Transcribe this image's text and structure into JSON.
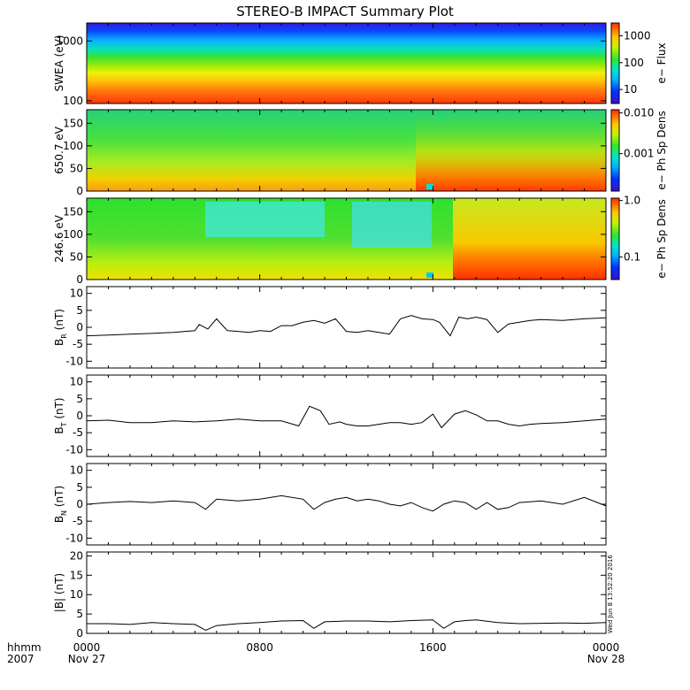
{
  "title": "STEREO-B IMPACT Summary Plot",
  "timestamp": "Wed Jun 8 13:52:20 2016",
  "x_axis": {
    "ticks": [
      "0000",
      "0800",
      "1600",
      "0000"
    ],
    "tick_hours": [
      0,
      8,
      16,
      24
    ],
    "dates": [
      "Nov 27",
      "Nov 28"
    ],
    "corner_label_1": "hhmm",
    "corner_label_2": "2007"
  },
  "chart_data": [
    {
      "type": "heatmap",
      "ylabel": "SWEA (eV)",
      "yscale": "log",
      "ylim": [
        90,
        2000
      ],
      "yticks": [
        "1000",
        "100"
      ],
      "yticks_values": [
        1000,
        100
      ],
      "colorbar": {
        "label": "e− Flux",
        "scale": "log",
        "ticks": [
          "1000",
          "100",
          "10"
        ],
        "tick_values": [
          1000,
          100,
          10
        ],
        "range": [
          3,
          3000
        ]
      },
      "description_values": {
        "energy_eV": [
          100,
          200,
          500,
          1000,
          2000
        ],
        "flux_e": [
          2500,
          700,
          100,
          10,
          3
        ]
      }
    },
    {
      "type": "heatmap",
      "ylabel": "650.7 eV",
      "ylim": [
        0,
        180
      ],
      "yticks": [
        "150",
        "100",
        "50",
        "0"
      ],
      "yticks_values": [
        150,
        100,
        50,
        0
      ],
      "colorbar": {
        "label": "e− Ph Sp Dens",
        "scale": "log",
        "ticks": [
          "0.010",
          "0.001"
        ],
        "tick_values": [
          0.01,
          0.001
        ],
        "range": [
          0.00012,
          0.012
        ]
      }
    },
    {
      "type": "heatmap",
      "ylabel": "246.6 eV",
      "ylim": [
        0,
        180
      ],
      "yticks": [
        "150",
        "100",
        "50",
        "0"
      ],
      "yticks_values": [
        150,
        100,
        50,
        0
      ],
      "colorbar": {
        "label": "e− Ph Sp Dens",
        "scale": "log",
        "ticks": [
          "1.0",
          "0.1"
        ],
        "tick_values": [
          1.0,
          0.1
        ],
        "range": [
          0.04,
          1.1
        ]
      }
    },
    {
      "type": "line",
      "ylabel": "B",
      "ylabel_sub": "R",
      "ylabel_unit": "(nT)",
      "ylim": [
        -12,
        12
      ],
      "yticks": [
        "10",
        "5",
        "0",
        "-5",
        "-10"
      ],
      "yticks_values": [
        10,
        5,
        0,
        -5,
        -10
      ],
      "x": [
        0,
        1,
        2,
        3,
        4,
        5,
        5.2,
        5.6,
        6,
        6.5,
        7,
        7.5,
        8,
        8.5,
        9,
        9.5,
        10,
        10.5,
        11,
        11.5,
        12,
        12.5,
        13,
        13.5,
        14,
        14.5,
        15,
        15.5,
        16,
        16.3,
        16.8,
        17.2,
        17.6,
        18,
        18.5,
        19,
        19.5,
        20,
        20.5,
        21,
        22,
        23,
        24
      ],
      "values": [
        -2.5,
        -2.3,
        -2,
        -1.8,
        -1.5,
        -1,
        0.8,
        -0.5,
        2.5,
        -1,
        -1.2,
        -1.5,
        -1,
        -1.2,
        0.5,
        0.5,
        1.5,
        2,
        1.2,
        2.5,
        -1.2,
        -1.5,
        -1,
        -1.5,
        -2,
        2.5,
        3.5,
        2.5,
        2.3,
        1.5,
        -2.5,
        3,
        2.5,
        3,
        2.3,
        -1.5,
        1,
        1.5,
        2,
        2.3,
        2,
        2.5,
        2.8
      ]
    },
    {
      "type": "line",
      "ylabel": "B",
      "ylabel_sub": "T",
      "ylabel_unit": "(nT)",
      "ylim": [
        -12,
        12
      ],
      "yticks": [
        "10",
        "5",
        "0",
        "-5",
        "-10"
      ],
      "yticks_values": [
        10,
        5,
        0,
        -5,
        -10
      ],
      "x": [
        0,
        1,
        2,
        3,
        4,
        5,
        6,
        7,
        8,
        9,
        9.8,
        10.3,
        10.8,
        11.2,
        11.7,
        12,
        12.5,
        13,
        13.5,
        14,
        14.5,
        15,
        15.5,
        16,
        16.4,
        17,
        17.5,
        18,
        18.5,
        19,
        19.5,
        20,
        20.5,
        21,
        22,
        23,
        24
      ],
      "values": [
        -1.5,
        -1.3,
        -2,
        -2,
        -1.5,
        -1.8,
        -1.5,
        -1,
        -1.5,
        -1.5,
        -3,
        2.8,
        1.5,
        -2.5,
        -1.8,
        -2.5,
        -3,
        -3,
        -2.5,
        -2,
        -2,
        -2.5,
        -2,
        0.5,
        -3.5,
        0.5,
        1.5,
        0.3,
        -1.5,
        -1.5,
        -2.5,
        -3,
        -2.5,
        -2.3,
        -2,
        -1.5,
        -1
      ]
    },
    {
      "type": "line",
      "ylabel": "B",
      "ylabel_sub": "N",
      "ylabel_unit": "(nT)",
      "ylim": [
        -12,
        12
      ],
      "yticks": [
        "10",
        "5",
        "0",
        "-5",
        "-10"
      ],
      "yticks_values": [
        10,
        5,
        0,
        -5,
        -10
      ],
      "x": [
        0,
        1,
        2,
        3,
        4,
        5,
        5.5,
        6,
        7,
        8,
        9,
        10,
        10.5,
        11,
        11.5,
        12,
        12.5,
        13,
        13.5,
        14,
        14.5,
        15,
        15.5,
        16,
        16.5,
        17,
        17.5,
        18,
        18.5,
        19,
        19.5,
        20,
        21,
        22,
        23,
        24
      ],
      "values": [
        0,
        0.5,
        0.8,
        0.5,
        1,
        0.5,
        -1.5,
        1.5,
        1,
        1.5,
        2.5,
        1.5,
        -1.5,
        0.5,
        1.5,
        2,
        1,
        1.5,
        1,
        0,
        -0.5,
        0.5,
        -1,
        -2,
        0,
        1,
        0.5,
        -1.5,
        0.5,
        -1.5,
        -1,
        0.5,
        1,
        0,
        2,
        -0.5
      ]
    },
    {
      "type": "line",
      "ylabel": "|B| (nT)",
      "ylim": [
        0,
        21
      ],
      "yticks": [
        "20",
        "15",
        "10",
        "5",
        "0"
      ],
      "yticks_values": [
        20,
        15,
        10,
        5,
        0
      ],
      "x": [
        0,
        1,
        2,
        3,
        4,
        5,
        5.5,
        6,
        7,
        8,
        9,
        10,
        10.5,
        11,
        12,
        13,
        14,
        15,
        16,
        16.5,
        17,
        17.5,
        18,
        19,
        20,
        21,
        22,
        23,
        24
      ],
      "values": [
        2.5,
        2.5,
        2.3,
        2.8,
        2.5,
        2.3,
        0.8,
        2,
        2.5,
        2.8,
        3.2,
        3.3,
        1.3,
        3,
        3.2,
        3.2,
        3,
        3.3,
        3.5,
        1.3,
        3,
        3.3,
        3.5,
        2.8,
        2.5,
        2.6,
        2.7,
        2.6,
        2.8
      ]
    }
  ]
}
